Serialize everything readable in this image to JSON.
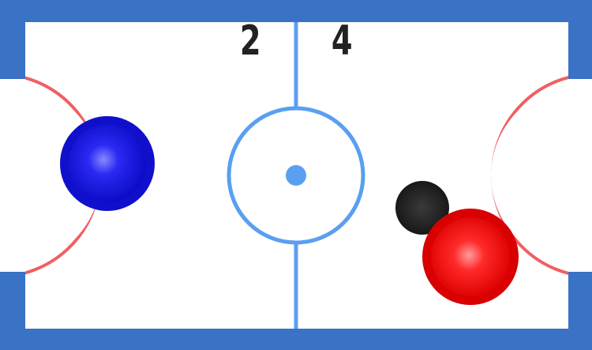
{
  "scores": {
    "left": "2",
    "right": "4"
  },
  "colors": {
    "frame": "#3a72c5",
    "table": "#ffffff",
    "center_line": "#5a9ff0",
    "goal_arc": "#f05f62",
    "left_paddle": "#1515e0",
    "right_paddle": "#ee1111",
    "puck": "#1e1e1e"
  }
}
